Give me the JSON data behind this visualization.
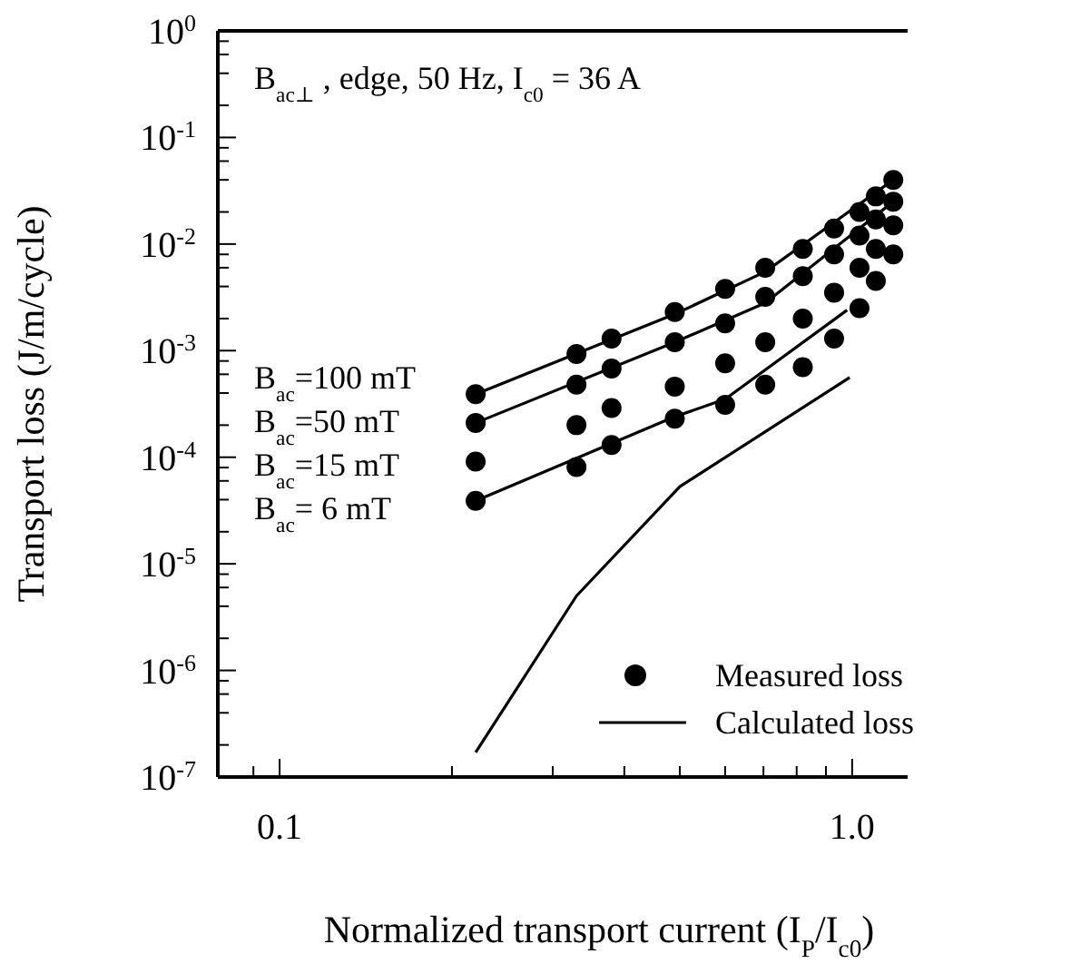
{
  "chart_data": {
    "type": "scatter",
    "title": "B$_{ac⊥}$ , edge, 50 Hz, I$_{c0}$ = 36 A",
    "xlabel": "Normalized transport current (I$_{P}$/I$_{c0}$)",
    "ylabel": "Transport loss (J/m/cycle)",
    "log": "xy",
    "xlim": [
      0.078,
      1.25
    ],
    "ylim": [
      1e-07,
      1
    ],
    "xticks": [
      {
        "value": 0.09,
        "label": null
      },
      0.1,
      {
        "value": 0.2,
        "label": null
      },
      {
        "value": 0.3,
        "label": null
      },
      {
        "value": 0.4,
        "label": null
      },
      {
        "value": 0.5,
        "label": null
      },
      {
        "value": 0.6,
        "label": null
      },
      {
        "value": 0.7,
        "label": null
      },
      {
        "value": 0.8,
        "label": null
      },
      {
        "value": 0.9,
        "label": null
      },
      {
        "value": 1,
        "label": "1.0"
      }
    ],
    "yticks": [
      {
        "value": 1e-07,
        "label": "10$^{-7}$"
      },
      {
        "value": 1e-06,
        "label": "10$^{-6}$"
      },
      {
        "value": 1e-05,
        "label": "10$^{-5}$"
      },
      {
        "value": 0.0001,
        "label": "10$^{-4}$"
      },
      {
        "value": 0.001,
        "label": "10$^{-3}$"
      },
      {
        "value": 0.01,
        "label": "10$^{-2}$"
      },
      {
        "value": 0.1,
        "label": "10$^{-1}$"
      },
      {
        "value": 1,
        "label": "10$^{0}$"
      },
      {
        "value": 2e-07,
        "label": null
      },
      {
        "value": 4e-07,
        "label": null
      },
      {
        "value": 6e-07,
        "label": null
      },
      {
        "value": 8e-07,
        "label": null
      },
      {
        "value": 2e-06,
        "label": null
      },
      {
        "value": 4e-06,
        "label": null
      },
      {
        "value": 6e-06,
        "label": null
      },
      {
        "value": 8e-06,
        "label": null
      },
      {
        "value": 2e-05,
        "label": null
      },
      {
        "value": 4e-05,
        "label": null
      },
      {
        "value": 6e-05,
        "label": null
      },
      {
        "value": 8e-05,
        "label": null
      },
      {
        "value": 0.0002,
        "label": null
      },
      {
        "value": 0.0004,
        "label": null
      },
      {
        "value": 0.0006,
        "label": null
      },
      {
        "value": 0.0008,
        "label": null
      },
      {
        "value": 0.002,
        "label": null
      },
      {
        "value": 0.004,
        "label": null
      },
      {
        "value": 0.006,
        "label": null
      },
      {
        "value": 0.008,
        "label": null
      },
      {
        "value": 0.02,
        "label": null
      },
      {
        "value": 0.04,
        "label": null
      },
      {
        "value": 0.06,
        "label": null
      },
      {
        "value": 0.08,
        "label": null
      },
      {
        "value": 0.2,
        "label": null
      },
      {
        "value": 0.4,
        "label": null
      },
      {
        "value": 0.6,
        "label": null
      },
      {
        "value": 0.8,
        "label": null
      }
    ],
    "grid": false,
    "legend": "bottom right",
    "series": [
      {
        "name": "Measured loss",
        "marker": "circle",
        "color": "#000000",
        "x": [
          0.22,
          0.33,
          0.38,
          0.49,
          0.6,
          0.705,
          0.82,
          0.93,
          1.03,
          1.1,
          1.18
        ],
        "values": [
          0.00039,
          0.00093,
          0.0013,
          0.0023,
          0.0038,
          0.006,
          0.009,
          0.014,
          0.02,
          0.028,
          0.04
        ]
      },
      {
        "marker": "circle",
        "color": "#000000",
        "x": [
          0.22,
          0.33,
          0.38,
          0.49,
          0.6,
          0.705,
          0.82,
          0.93,
          1.03,
          1.1,
          1.18
        ],
        "values": [
          0.00021,
          0.00048,
          0.00068,
          0.0012,
          0.0018,
          0.0032,
          0.005,
          0.008,
          0.012,
          0.017,
          0.025
        ]
      },
      {
        "marker": "circle",
        "color": "#000000",
        "x": [
          0.22,
          0.33,
          0.38,
          0.49,
          0.6,
          0.705,
          0.82,
          0.93,
          1.03,
          1.1,
          1.18
        ],
        "values": [
          9.1e-05,
          0.0002,
          0.00029,
          0.00046,
          0.00076,
          0.0012,
          0.002,
          0.0035,
          0.006,
          0.009,
          0.015
        ]
      },
      {
        "marker": "circle",
        "color": "#000000",
        "x": [
          0.22,
          0.33,
          0.38,
          0.49,
          0.6,
          0.705,
          0.82,
          0.93,
          1.03,
          1.1,
          1.18
        ],
        "values": [
          3.9e-05,
          8.1e-05,
          0.00013,
          0.00023,
          0.00031,
          0.00048,
          0.0007,
          0.0013,
          0.0025,
          0.0045,
          0.008
        ]
      },
      {
        "name": "Calculated loss",
        "type": "line",
        "marker": "none",
        "line_style": "solid",
        "color": "#000000",
        "x": [
          0.22,
          0.49,
          0.705,
          1.18
        ],
        "values": [
          0.00039,
          0.0022,
          0.0055,
          0.04
        ]
      },
      {
        "type": "line",
        "marker": "none",
        "line_style": "solid",
        "color": "#000000",
        "x": [
          0.22,
          0.49,
          0.705,
          1.18
        ],
        "values": [
          0.00021,
          0.0012,
          0.0028,
          0.025
        ]
      },
      {
        "type": "line",
        "marker": "none",
        "line_style": "solid",
        "color": "#000000",
        "x": [
          0.22,
          0.49,
          0.6,
          0.98
        ],
        "values": [
          3.9e-05,
          0.00024,
          0.00035,
          0.0024
        ]
      },
      {
        "type": "line",
        "marker": "none",
        "line_style": "solid",
        "color": "#000000",
        "x": [
          0.22,
          0.33,
          0.5,
          0.99
        ],
        "values": [
          1.7e-07,
          5e-06,
          5.3e-05,
          0.00056
        ]
      }
    ],
    "annotations": [
      "B$_{ac}$=100 mT",
      "B$_{ac}$=50 mT",
      "B$_{ac}$=15 mT",
      "B$_{ac}$= 6 mT"
    ]
  }
}
